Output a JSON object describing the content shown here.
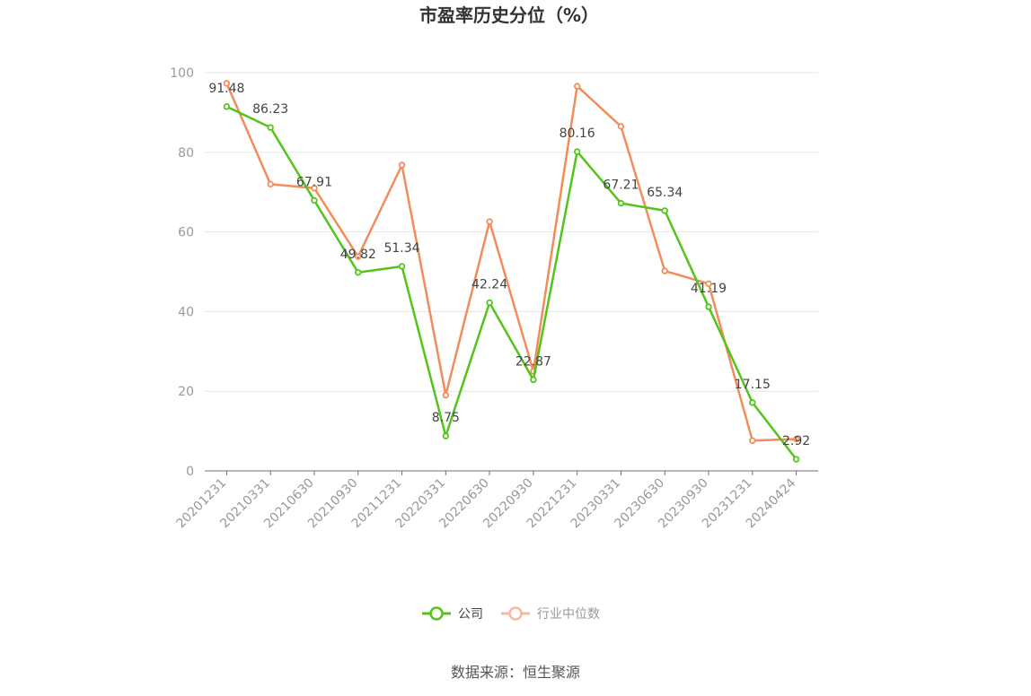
{
  "chart_data": {
    "type": "line",
    "title": "市盈率历史分位（%）",
    "categories": [
      "20201231",
      "20210331",
      "20210630",
      "20210930",
      "20211231",
      "20220331",
      "20220630",
      "20220930",
      "20221231",
      "20230331",
      "20230630",
      "20230930",
      "20231231",
      "20240424"
    ],
    "series": [
      {
        "name": "公司",
        "color": "#52c41a",
        "values": [
          91.48,
          86.23,
          67.91,
          49.82,
          51.34,
          8.75,
          42.24,
          22.87,
          80.16,
          67.21,
          65.34,
          41.19,
          17.15,
          2.92
        ],
        "labels": [
          "91.48",
          "86.23",
          "67.91",
          "49.82",
          "51.34",
          "8.75",
          "42.24",
          "22.87",
          "80.16",
          "67.21",
          "65.34",
          "41.19",
          "17.15",
          "2.92"
        ]
      },
      {
        "name": "行业中位数",
        "color": "#f28c5a",
        "values": [
          97.3,
          72.0,
          71.0,
          53.8,
          76.8,
          19.0,
          62.6,
          25.0,
          96.6,
          86.5,
          50.2,
          47.0,
          7.6,
          8.0
        ]
      }
    ],
    "yticks": [
      0,
      20,
      40,
      60,
      80,
      100
    ],
    "ylim": [
      0,
      100
    ],
    "grid": true,
    "legend": "bottom-center"
  },
  "source": "数据来源：恒生聚源"
}
